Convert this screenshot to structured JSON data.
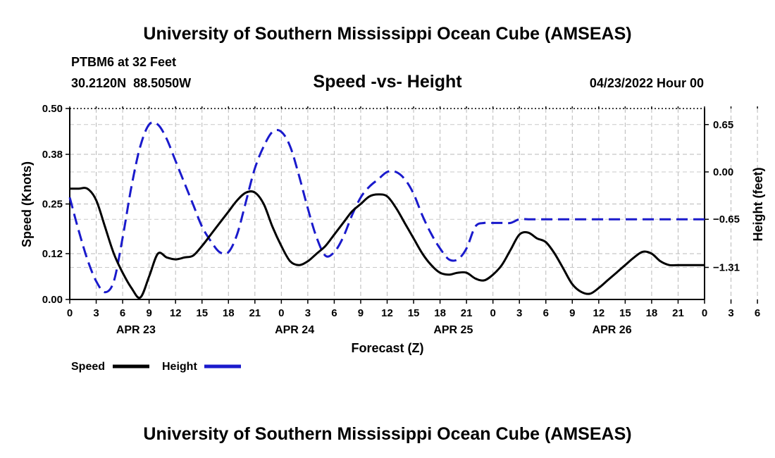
{
  "page": {
    "title": "University of Southern Mississippi Ocean Cube (AMSEAS)",
    "footer_title": "University of Southern Mississippi Ocean Cube (AMSEAS)"
  },
  "station": {
    "name": "PTBM6 at 32 Feet",
    "coords": "30.2120N  88.5050W"
  },
  "chart_title": "Speed -vs- Height",
  "run_time": "04/23/2022 Hour 00",
  "legend": [
    {
      "label": "Speed",
      "color": "#000000",
      "dash": "solid"
    },
    {
      "label": "Height",
      "color": "#1a1acc",
      "dash": "dashed"
    }
  ],
  "chart_data": {
    "type": "line",
    "title": "Speed -vs- Height",
    "xlabel": "Forecast (Z)",
    "ylabel": "Speed (Knots)",
    "y2label": "Height (feet)",
    "x_range_hours": [
      0,
      72
    ],
    "x_tick_step_hours": 3,
    "x_tick_labels": [
      "0",
      "3",
      "6",
      "9",
      "12",
      "15",
      "18",
      "21",
      "0",
      "3",
      "6",
      "9",
      "12",
      "15",
      "18",
      "21",
      "0",
      "3",
      "6",
      "9",
      "12",
      "15",
      "18",
      "21",
      "0",
      "3",
      "6",
      "9",
      "12",
      "15",
      "18",
      "21",
      "0"
    ],
    "date_labels": [
      {
        "label": "APR 23",
        "hour": 7.5
      },
      {
        "label": "APR 24",
        "hour": 25.5
      },
      {
        "label": "APR 25",
        "hour": 43.5
      },
      {
        "label": "APR 26",
        "hour": 61.5
      }
    ],
    "y_range": [
      0.0,
      0.5
    ],
    "y_ticks": [
      0.0,
      0.12,
      0.25,
      0.38,
      0.5
    ],
    "y_tick_labels": [
      "0.00",
      "0.12",
      "0.25",
      "0.38",
      "0.50"
    ],
    "y2_range": [
      -1.75,
      0.87
    ],
    "y2_ticks": [
      -1.31,
      -0.65,
      0.0,
      0.65
    ],
    "y2_tick_labels": [
      "−1.31",
      "−0.65",
      "0.00",
      "0.65"
    ],
    "grid": true,
    "series": [
      {
        "name": "Speed",
        "axis": "left",
        "color": "#000000",
        "dash": "solid",
        "x": [
          0,
          1,
          2,
          3,
          4,
          5,
          6,
          7,
          8,
          9,
          10,
          11,
          12,
          13,
          14,
          15,
          16,
          17,
          18,
          19,
          20,
          21,
          22,
          23,
          24,
          25,
          26,
          27,
          28,
          29,
          30,
          31,
          32,
          33,
          34,
          35,
          36,
          37,
          38,
          39,
          40,
          41,
          42,
          43,
          44,
          45,
          46,
          47,
          48,
          49,
          50,
          51,
          52,
          53,
          54,
          55,
          56,
          57,
          58,
          59,
          60,
          61,
          62,
          63,
          64,
          65,
          66,
          67,
          68,
          69,
          70,
          71,
          72
        ],
        "values": [
          0.29,
          0.29,
          0.29,
          0.26,
          0.19,
          0.12,
          0.07,
          0.03,
          0.005,
          0.06,
          0.12,
          0.11,
          0.105,
          0.11,
          0.115,
          0.14,
          0.17,
          0.2,
          0.23,
          0.26,
          0.28,
          0.28,
          0.25,
          0.19,
          0.14,
          0.1,
          0.09,
          0.1,
          0.12,
          0.14,
          0.17,
          0.2,
          0.23,
          0.25,
          0.27,
          0.275,
          0.27,
          0.24,
          0.2,
          0.16,
          0.12,
          0.09,
          0.07,
          0.065,
          0.07,
          0.07,
          0.055,
          0.05,
          0.065,
          0.09,
          0.13,
          0.17,
          0.175,
          0.16,
          0.15,
          0.12,
          0.08,
          0.04,
          0.02,
          0.015,
          0.03,
          0.05,
          0.07,
          0.09,
          0.11,
          0.125,
          0.12,
          0.1,
          0.09,
          0.09,
          0.09,
          0.09,
          0.09
        ]
      },
      {
        "name": "Height",
        "axis": "right",
        "color": "#1a1acc",
        "dash": "dashed",
        "x": [
          0,
          1,
          2,
          3,
          4,
          5,
          6,
          7,
          8,
          9,
          10,
          11,
          12,
          13,
          14,
          15,
          16,
          17,
          18,
          19,
          20,
          21,
          22,
          23,
          24,
          25,
          26,
          27,
          28,
          29,
          30,
          31,
          32,
          33,
          34,
          35,
          36,
          37,
          38,
          39,
          40,
          41,
          42,
          43,
          44,
          45,
          46,
          47,
          48,
          49,
          50,
          51,
          52,
          53,
          54,
          55,
          56,
          57,
          58,
          59,
          60,
          61,
          62,
          63,
          64,
          65,
          66,
          67,
          68,
          69,
          70,
          71,
          72
        ],
        "values": [
          -0.35,
          -0.8,
          -1.2,
          -1.5,
          -1.65,
          -1.5,
          -0.9,
          -0.2,
          0.35,
          0.65,
          0.65,
          0.45,
          0.15,
          -0.15,
          -0.45,
          -0.75,
          -0.95,
          -1.1,
          -1.1,
          -0.85,
          -0.4,
          0.05,
          0.35,
          0.55,
          0.55,
          0.35,
          -0.05,
          -0.5,
          -0.9,
          -1.15,
          -1.1,
          -0.9,
          -0.6,
          -0.35,
          -0.2,
          -0.1,
          0.0,
          0.0,
          -0.1,
          -0.3,
          -0.6,
          -0.85,
          -1.05,
          -1.2,
          -1.2,
          -1.05,
          -0.75,
          -0.7,
          -0.7,
          -0.7,
          -0.7,
          -0.65,
          -0.65,
          -0.65,
          -0.65,
          -0.65,
          -0.65,
          -0.65,
          -0.65,
          -0.65,
          -0.65,
          -0.65,
          -0.65,
          -0.65,
          -0.65,
          -0.65,
          -0.65,
          -0.65,
          -0.65,
          -0.65,
          -0.65,
          -0.65,
          -0.65
        ]
      }
    ]
  }
}
